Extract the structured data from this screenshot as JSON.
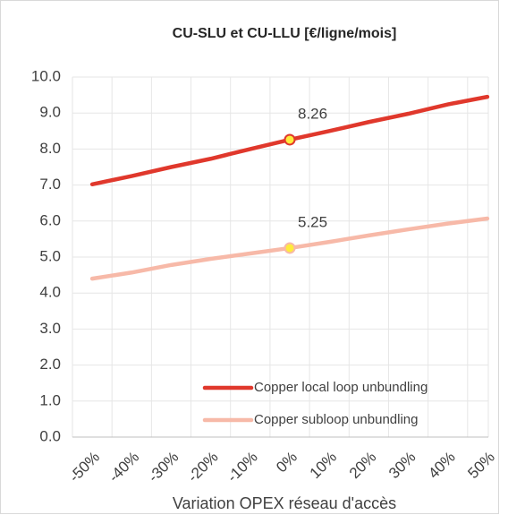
{
  "chart_data": {
    "type": "line",
    "title": "CU-SLU et CU-LLU [€/ligne/mois]",
    "x_label": "Variation OPEX réseau d'accès",
    "categories": [
      "-50%",
      "-40%",
      "-30%",
      "-20%",
      "-10%",
      "0%",
      "10%",
      "20%",
      "30%",
      "40%",
      "50%"
    ],
    "series": [
      {
        "name": "Copper local loop unbundling",
        "color": "#e0382c",
        "marker_color": "#ffeb3b",
        "values": [
          7.02,
          7.25,
          7.5,
          7.73,
          8.0,
          8.26,
          8.5,
          8.75,
          8.98,
          9.24,
          9.45
        ]
      },
      {
        "name": "Copper subloop unbundling",
        "color": "#f7b9a8",
        "marker_color": "#ffeb3b",
        "values": [
          4.4,
          4.57,
          4.78,
          4.95,
          5.1,
          5.25,
          5.42,
          5.6,
          5.77,
          5.93,
          6.07
        ]
      }
    ],
    "highlight": "0%",
    "ylim": [
      0,
      10
    ],
    "yticks": [
      {
        "value": 0,
        "label": "0.0"
      },
      {
        "value": 1,
        "label": "1.0"
      },
      {
        "value": 2,
        "label": "2.0"
      },
      {
        "value": 3,
        "label": "3.0"
      },
      {
        "value": 4,
        "label": "4.0"
      },
      {
        "value": 5,
        "label": "5.0"
      },
      {
        "value": 6,
        "label": "6.0"
      },
      {
        "value": 7,
        "label": "7.0"
      },
      {
        "value": 8,
        "label": "8.0"
      },
      {
        "value": 9,
        "label": "9.0"
      },
      {
        "value": 10,
        "label": "10.0"
      }
    ],
    "grid": true,
    "legend": "lower right"
  }
}
